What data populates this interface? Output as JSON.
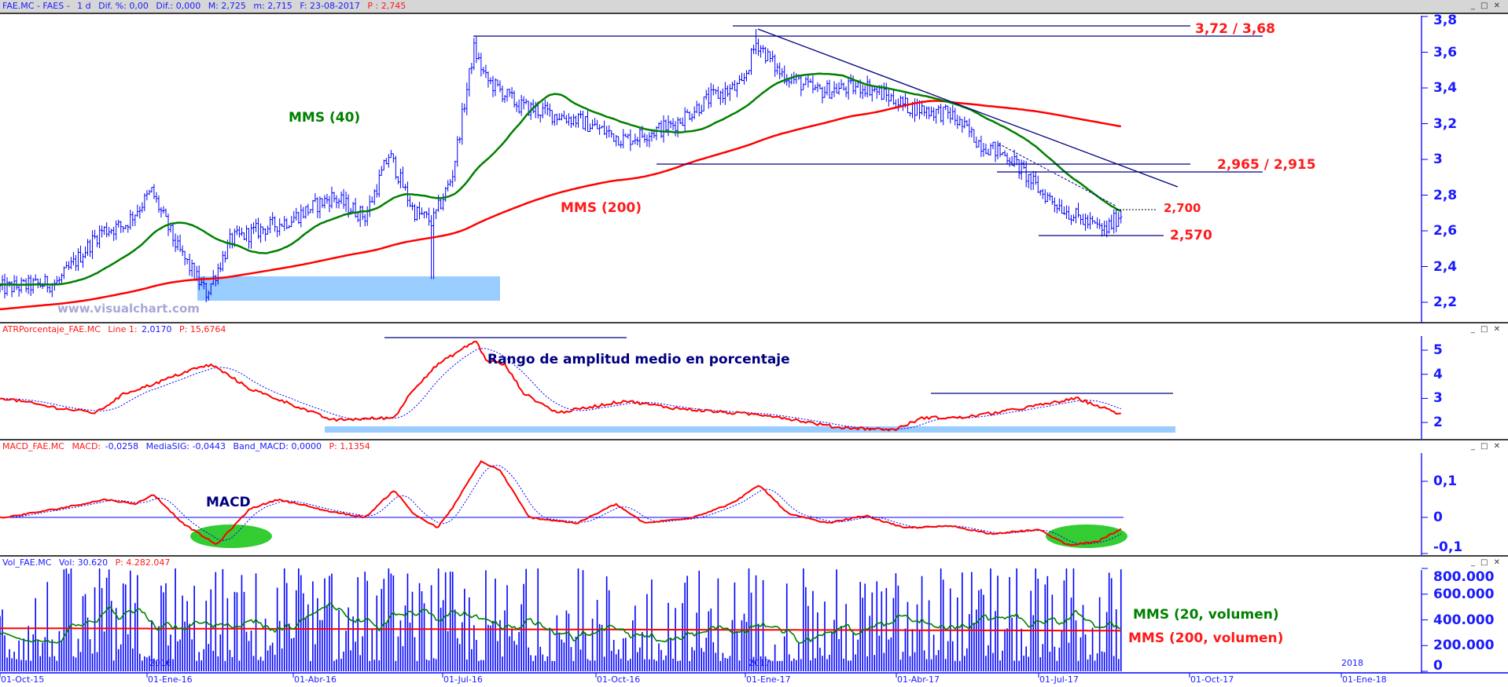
{
  "headers": {
    "main": {
      "symbol": "FAE.MC - FAES -",
      "period": "1 d",
      "dif_pct": "Dif. %: 0,00",
      "dif": "Dif.: 0,000",
      "max": "M: 2,725",
      "min": "m: 2,715",
      "date": "F: 23-08-2017",
      "price": "P : 2,745"
    },
    "atr": {
      "name": "ATRPorcentaje_FAE.MC",
      "line_label": "Line 1:",
      "line_value": "2,0170",
      "p": "P: 15,6764"
    },
    "macd": {
      "name": "MACD_FAE.MC",
      "macd_label": "MACD:",
      "macd_value": "-0,0258",
      "sig": "MediaSIG: -0,0443",
      "band": "Band_MACD: 0,0000",
      "p": "P: 1,1354"
    },
    "vol": {
      "name": "Vol_FAE.MC",
      "vol": "Vol: 30.620",
      "p": "P: 4.282.047"
    }
  },
  "window_buttons": "_ □ ✕",
  "annotations": {
    "resistance": "3,72 / 3,68",
    "support_mid": "2,965 / 2,915",
    "level_2700": "2,700",
    "level_2570": "2,570",
    "mms40": "MMS (40)",
    "mms200": "MMS (200)",
    "watermark": "www.visualchart.com",
    "atr_title": "Rango de amplitud medio en porcentaje",
    "macd_title": "MACD",
    "vol_mms20": "MMS (20, volumen)",
    "vol_mms200": "MMS (200, volumen)"
  },
  "colors": {
    "bars": "#0000ff",
    "mms40": "#008000",
    "mms200": "#ff0000",
    "zone": "#99ccff",
    "ellipse": "#33cc33",
    "lines": "#000080"
  },
  "chart_data": [
    {
      "type": "line",
      "title": "FAE.MC - FAES daily OHLC",
      "x_unit": "months since 01-Oct-15",
      "price_keypoints": [
        [
          0.1,
          2.28
        ],
        [
          1.16,
          2.31
        ],
        [
          2.03,
          2.6
        ],
        [
          2.5,
          2.63
        ],
        [
          3.05,
          2.82
        ],
        [
          3.57,
          2.5
        ],
        [
          4.15,
          2.25
        ],
        [
          4.64,
          2.55
        ],
        [
          5.8,
          2.66
        ],
        [
          6.67,
          2.79
        ],
        [
          7.34,
          2.68
        ],
        [
          7.82,
          3.03
        ],
        [
          8.31,
          2.71
        ],
        [
          8.69,
          2.65
        ],
        [
          9.08,
          2.9
        ],
        [
          9.52,
          3.62
        ],
        [
          9.76,
          3.45
        ],
        [
          10.43,
          3.3
        ],
        [
          11.6,
          3.22
        ],
        [
          12.56,
          3.11
        ],
        [
          13.5,
          3.19
        ],
        [
          14.3,
          3.35
        ],
        [
          14.9,
          3.41
        ],
        [
          15.2,
          3.66
        ],
        [
          15.65,
          3.49
        ],
        [
          16.4,
          3.38
        ],
        [
          17.4,
          3.41
        ],
        [
          18.2,
          3.3
        ],
        [
          19.1,
          3.25
        ],
        [
          19.7,
          3.09
        ],
        [
          20.3,
          3.01
        ],
        [
          20.9,
          2.82
        ],
        [
          21.6,
          2.68
        ],
        [
          22.2,
          2.6
        ],
        [
          22.57,
          2.71
        ]
      ],
      "ylim": [
        2.15,
        3.85
      ],
      "yticks": [
        "3,8",
        "3,6",
        "3,4",
        "3,2",
        "3",
        "2,8",
        "2,6",
        "2,4",
        "2,2"
      ],
      "ytick_values": [
        3.8,
        3.6,
        3.4,
        3.2,
        3.0,
        2.8,
        2.6,
        2.4,
        2.2
      ],
      "levels": [
        3.72,
        3.68,
        2.965,
        2.915,
        2.7,
        2.57
      ],
      "xticks": [
        "01-Oct-15",
        "01-Ene-16",
        "01-Abr-16",
        "01-Jul-16",
        "01-Oct-16",
        "01-Ene-17",
        "01-Abr-17",
        "01-Jul-17",
        "01-Oct-17",
        "01-Ene-18"
      ],
      "year_labels": [
        "2016",
        "2017",
        "2018"
      ]
    },
    {
      "type": "line",
      "title": "ATRPorcentaje",
      "keypoints": [
        [
          0.1,
          3.0
        ],
        [
          1.16,
          2.6
        ],
        [
          1.93,
          2.4
        ],
        [
          2.5,
          3.2
        ],
        [
          3.09,
          3.6
        ],
        [
          3.86,
          4.2
        ],
        [
          4.25,
          4.4
        ],
        [
          5.02,
          3.4
        ],
        [
          5.8,
          2.8
        ],
        [
          6.67,
          2.1
        ],
        [
          7.92,
          2.2
        ],
        [
          8.31,
          3.4
        ],
        [
          8.79,
          4.4
        ],
        [
          9.56,
          5.4
        ],
        [
          9.76,
          4.6
        ],
        [
          10.14,
          4.4
        ],
        [
          10.53,
          3.2
        ],
        [
          11.2,
          2.4
        ],
        [
          12.56,
          2.9
        ],
        [
          13.52,
          2.6
        ],
        [
          14.68,
          2.4
        ],
        [
          15.46,
          2.3
        ],
        [
          16.81,
          1.8
        ],
        [
          17.97,
          1.7
        ],
        [
          18.55,
          2.2
        ],
        [
          19.32,
          2.2
        ],
        [
          20.29,
          2.5
        ],
        [
          21.64,
          3.0
        ],
        [
          22.57,
          2.3
        ]
      ],
      "ylim": [
        1.4,
        5.7
      ],
      "yticks": [
        "5",
        "4",
        "3",
        "2"
      ],
      "ytick_values": [
        5,
        4,
        3,
        2
      ]
    },
    {
      "type": "line",
      "title": "MACD",
      "keypoints": [
        [
          0.1,
          0
        ],
        [
          1.16,
          0.024
        ],
        [
          2.13,
          0.05
        ],
        [
          2.7,
          0.037
        ],
        [
          3.09,
          0.063
        ],
        [
          3.67,
          -0.016
        ],
        [
          4.35,
          -0.076
        ],
        [
          5.02,
          0.024
        ],
        [
          5.6,
          0.05
        ],
        [
          6.57,
          0.018
        ],
        [
          7.34,
          0
        ],
        [
          7.92,
          0.076
        ],
        [
          8.31,
          0.01
        ],
        [
          8.79,
          -0.029
        ],
        [
          9.08,
          0.024
        ],
        [
          9.66,
          0.155
        ],
        [
          10.05,
          0.13
        ],
        [
          10.63,
          0
        ],
        [
          11.6,
          -0.016
        ],
        [
          12.37,
          0.037
        ],
        [
          12.95,
          -0.016
        ],
        [
          13.91,
          0
        ],
        [
          14.68,
          0.037
        ],
        [
          15.26,
          0.089
        ],
        [
          15.84,
          0.01
        ],
        [
          16.62,
          -0.016
        ],
        [
          17.39,
          0.005
        ],
        [
          18.16,
          -0.029
        ],
        [
          19.13,
          -0.024
        ],
        [
          19.9,
          -0.045
        ],
        [
          20.87,
          -0.034
        ],
        [
          21.45,
          -0.076
        ],
        [
          22.03,
          -0.068
        ],
        [
          22.57,
          -0.029
        ]
      ],
      "ylim": [
        -0.11,
        0.17
      ],
      "yticks": [
        "0,1",
        "0",
        "-0,1"
      ],
      "ytick_values": [
        0.1,
        0,
        -0.1
      ]
    },
    {
      "type": "bar",
      "title": "Volume",
      "ylim": [
        0,
        850000
      ],
      "yticks": [
        "800.000",
        "600.000",
        "400.000",
        "200.000",
        "0"
      ],
      "ytick_values": [
        800000,
        600000,
        400000,
        200000,
        0
      ],
      "typical_sma20": 350000,
      "typical_sma200": 330000
    }
  ]
}
